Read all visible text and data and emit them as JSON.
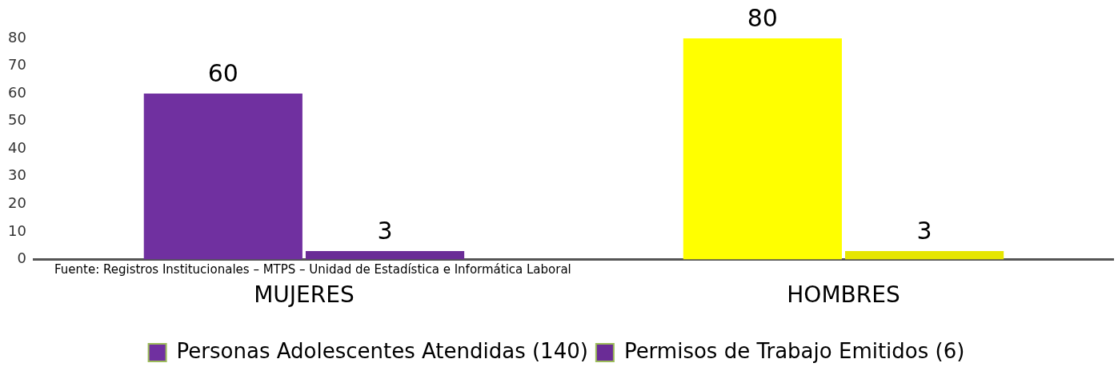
{
  "chart_data": {
    "type": "bar",
    "categories": [
      "MUJERES",
      "HOMBRES"
    ],
    "series": [
      {
        "name": "Personas Adolescentes Atendidas (140)",
        "colors": [
          "#7030a0",
          "#ffff00"
        ],
        "values": [
          60,
          80
        ]
      },
      {
        "name": "Permisos de Trabajo Emitidos (6)",
        "colors": [
          "#6a2c96",
          "#e6e600"
        ],
        "values": [
          3,
          3
        ]
      }
    ],
    "ylim": [
      0,
      80
    ],
    "yticks": [
      0,
      10,
      20,
      30,
      40,
      50,
      60,
      70,
      80
    ],
    "grid": false,
    "legend": "bottom",
    "data_labels": true,
    "annotations": [
      "Fuente: Registros Institucionales – MTPS – Unidad de Estadística e Informática Laboral"
    ]
  }
}
